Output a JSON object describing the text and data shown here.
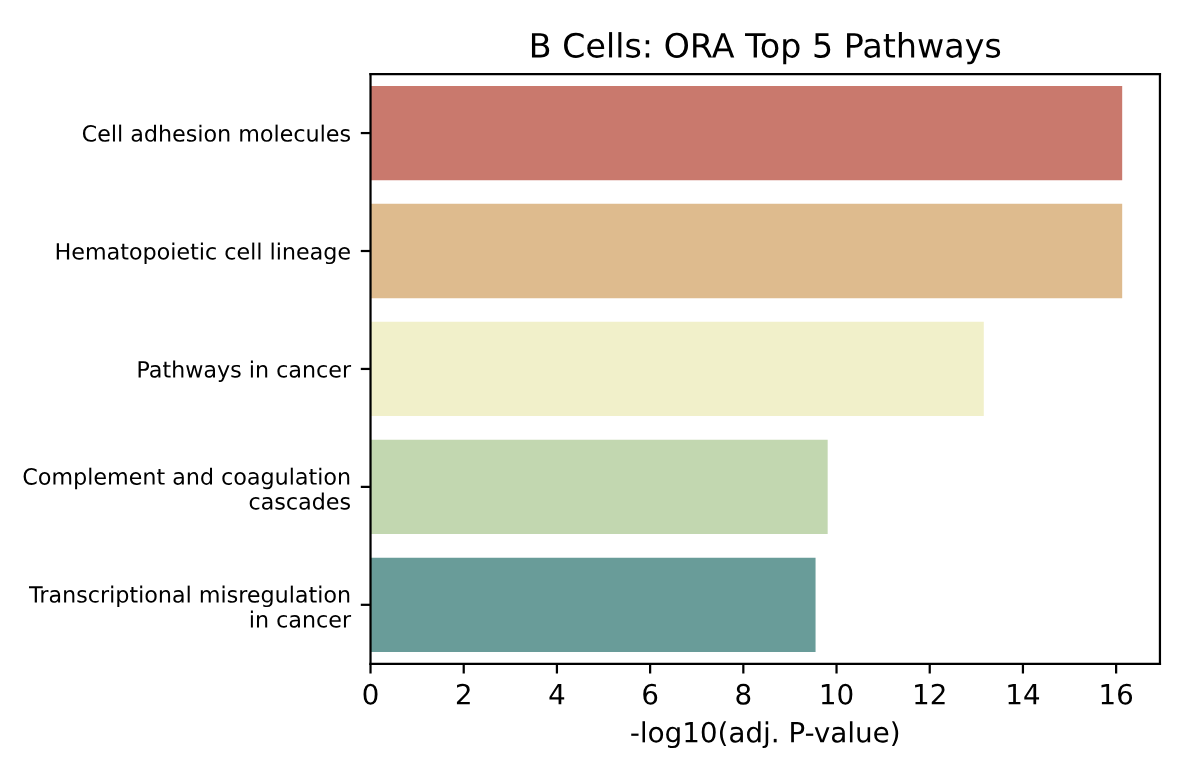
{
  "chart_data": {
    "type": "bar",
    "orientation": "horizontal",
    "title": "B Cells: ORA Top 5 Pathways",
    "xlabel": "-log10(adj. P-value)",
    "categories": [
      "Cell adhesion molecules",
      "Hematopoietic cell lineage",
      "Pathways in cancer",
      "Complement and coagulation\ncascades",
      "Transcriptional misregulation\nin cancer"
    ],
    "values": [
      16.13,
      16.13,
      13.16,
      9.81,
      9.55
    ],
    "colors": [
      "#d96e5d",
      "#ebbd81",
      "#f7f6c4",
      "#c2dea9",
      "#60a5a1"
    ],
    "xlim": [
      0,
      16.94
    ],
    "xticks": [
      0,
      2,
      4,
      6,
      8,
      10,
      12,
      14,
      16
    ],
    "grid": false,
    "legend": false
  }
}
